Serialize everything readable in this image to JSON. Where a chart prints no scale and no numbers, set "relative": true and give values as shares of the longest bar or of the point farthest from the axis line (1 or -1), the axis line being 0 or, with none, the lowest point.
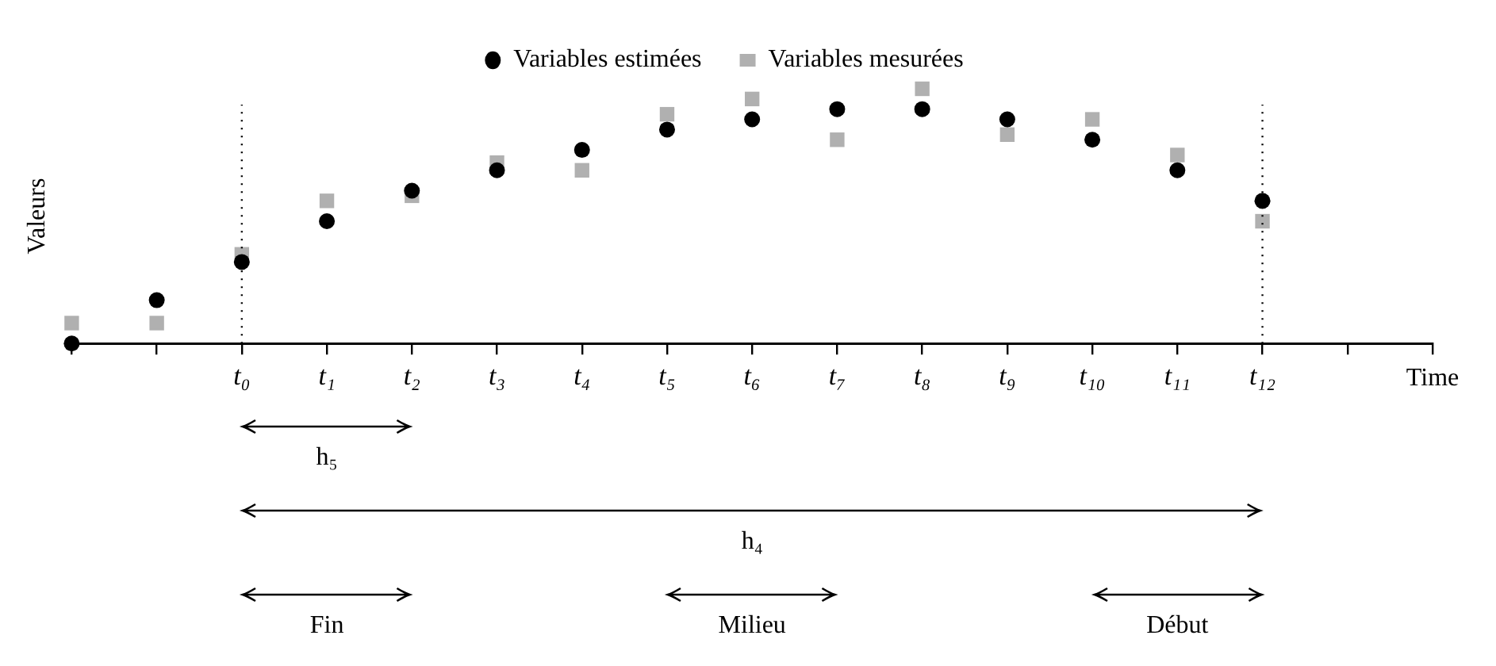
{
  "chart_data": {
    "type": "scatter",
    "relative": true,
    "ylabel": "Valeurs",
    "xlabel": "Time",
    "categories": [
      null,
      null,
      "t₀",
      "t₁",
      "t₂",
      "t₃",
      "t₄",
      "t₅",
      "t₆",
      "t₇",
      "t₈",
      "t₉",
      "t₁₀",
      "t₁₁",
      "t₁₂",
      null,
      null
    ],
    "series": [
      {
        "name": "Variables estimées",
        "color": "#000000",
        "marker": "circle",
        "values": [
          0,
          0.17,
          0.32,
          0.48,
          0.6,
          0.68,
          0.76,
          0.84,
          0.88,
          0.92,
          0.92,
          0.88,
          0.8,
          0.68,
          0.56,
          null,
          null
        ]
      },
      {
        "name": "Variables mesurées",
        "color": "#b0b0b0",
        "marker": "square",
        "values": [
          0.08,
          0.08,
          0.35,
          0.56,
          0.58,
          0.71,
          0.68,
          0.9,
          0.96,
          0.8,
          1,
          0.82,
          0.88,
          0.74,
          0.48,
          null,
          null
        ]
      }
    ],
    "ref_lines": [
      {
        "axis": "x",
        "value": "t₀",
        "line_style": "dotted"
      },
      {
        "axis": "x",
        "value": "t₁₂",
        "line_style": "dotted"
      }
    ],
    "annotations": [
      "h₅",
      "h₄",
      "Fin",
      "Milieu",
      "Début"
    ],
    "legend": "top",
    "grid": false
  }
}
